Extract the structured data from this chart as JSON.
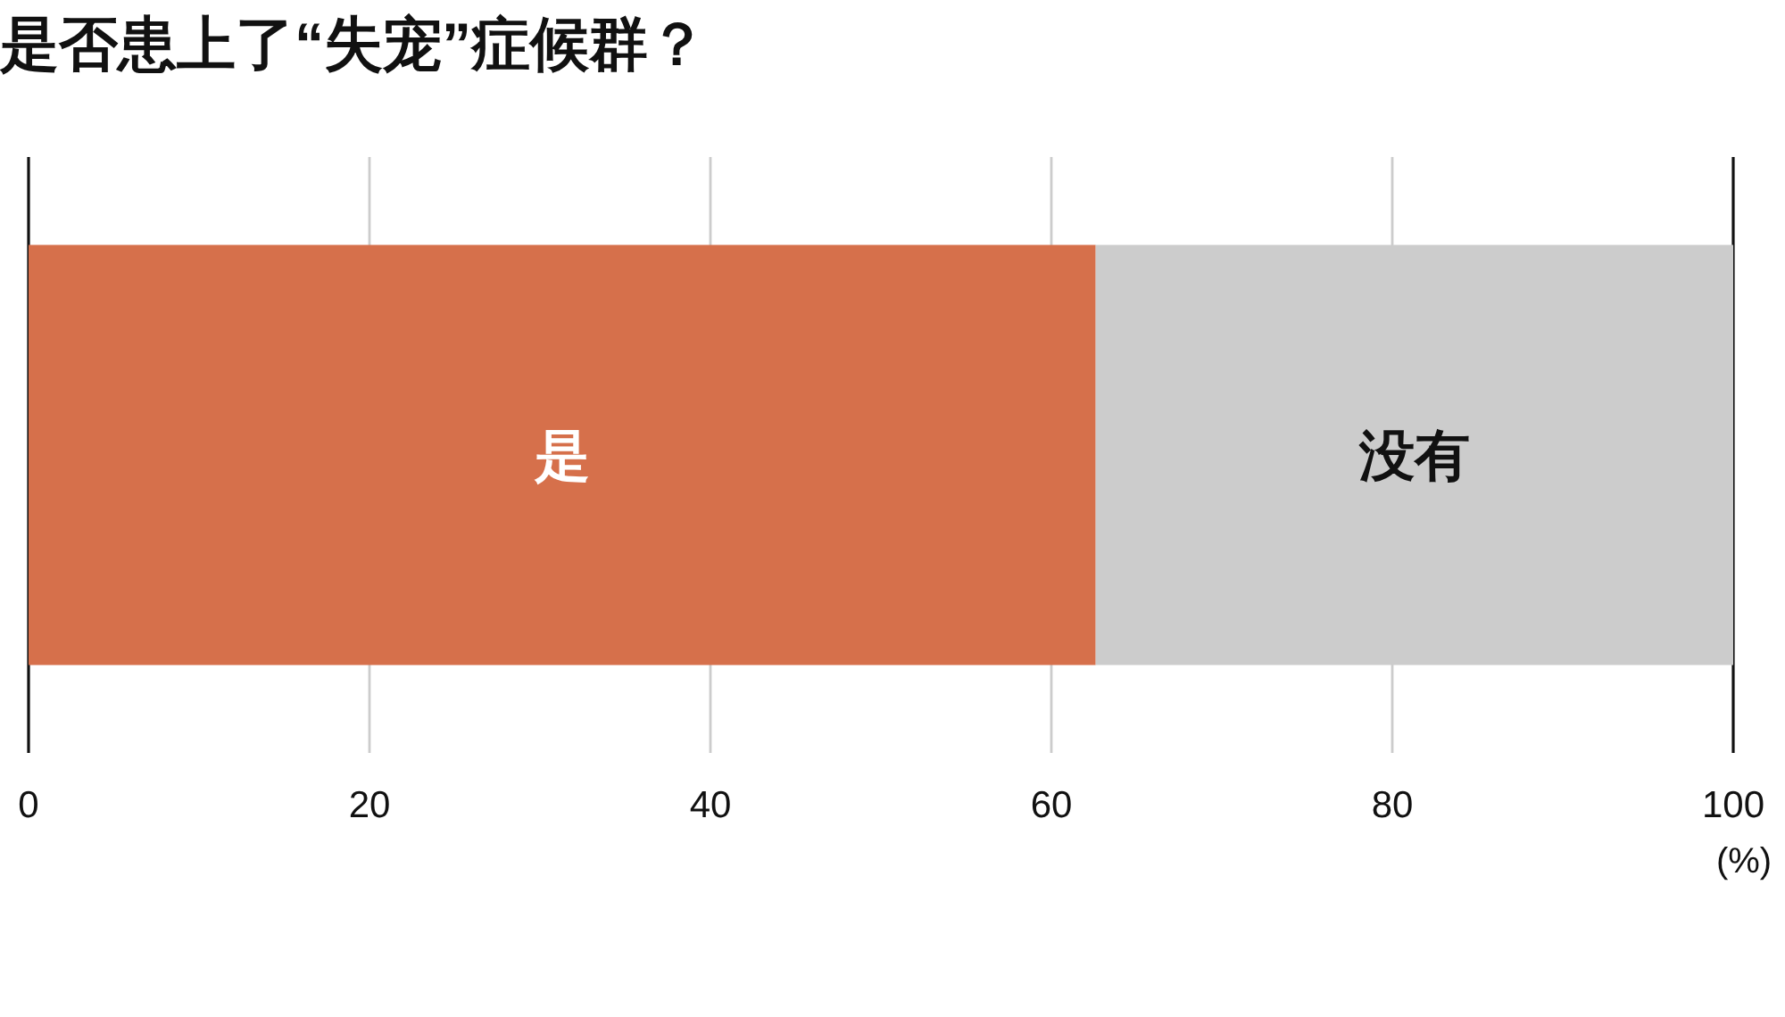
{
  "chart_data": {
    "type": "bar",
    "title": "是否患上了“失宠”症候群？",
    "xlabel": "(%)",
    "orientation": "horizontal",
    "stacked": true,
    "categories": [
      null
    ],
    "series": [
      {
        "name": "是",
        "color": "#d6704b",
        "values": [
          62.6
        ]
      },
      {
        "name": "没有",
        "color": "#cccccc",
        "values": [
          37.4
        ]
      }
    ],
    "xlim": [
      0,
      100
    ],
    "xticks": [
      0,
      20,
      40,
      60,
      80,
      100
    ],
    "grid": "x"
  }
}
